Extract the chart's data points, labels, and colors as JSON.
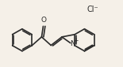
{
  "bg_color": "#f5f0e8",
  "line_color": "#2a2a2a",
  "text_color": "#2a2a2a",
  "line_width": 1.2,
  "fig_width": 1.55,
  "fig_height": 0.85,
  "dpi": 100,
  "cl_label": "Cl⁻",
  "cl_fontsize": 7.0,
  "mol_scale": 1.0
}
